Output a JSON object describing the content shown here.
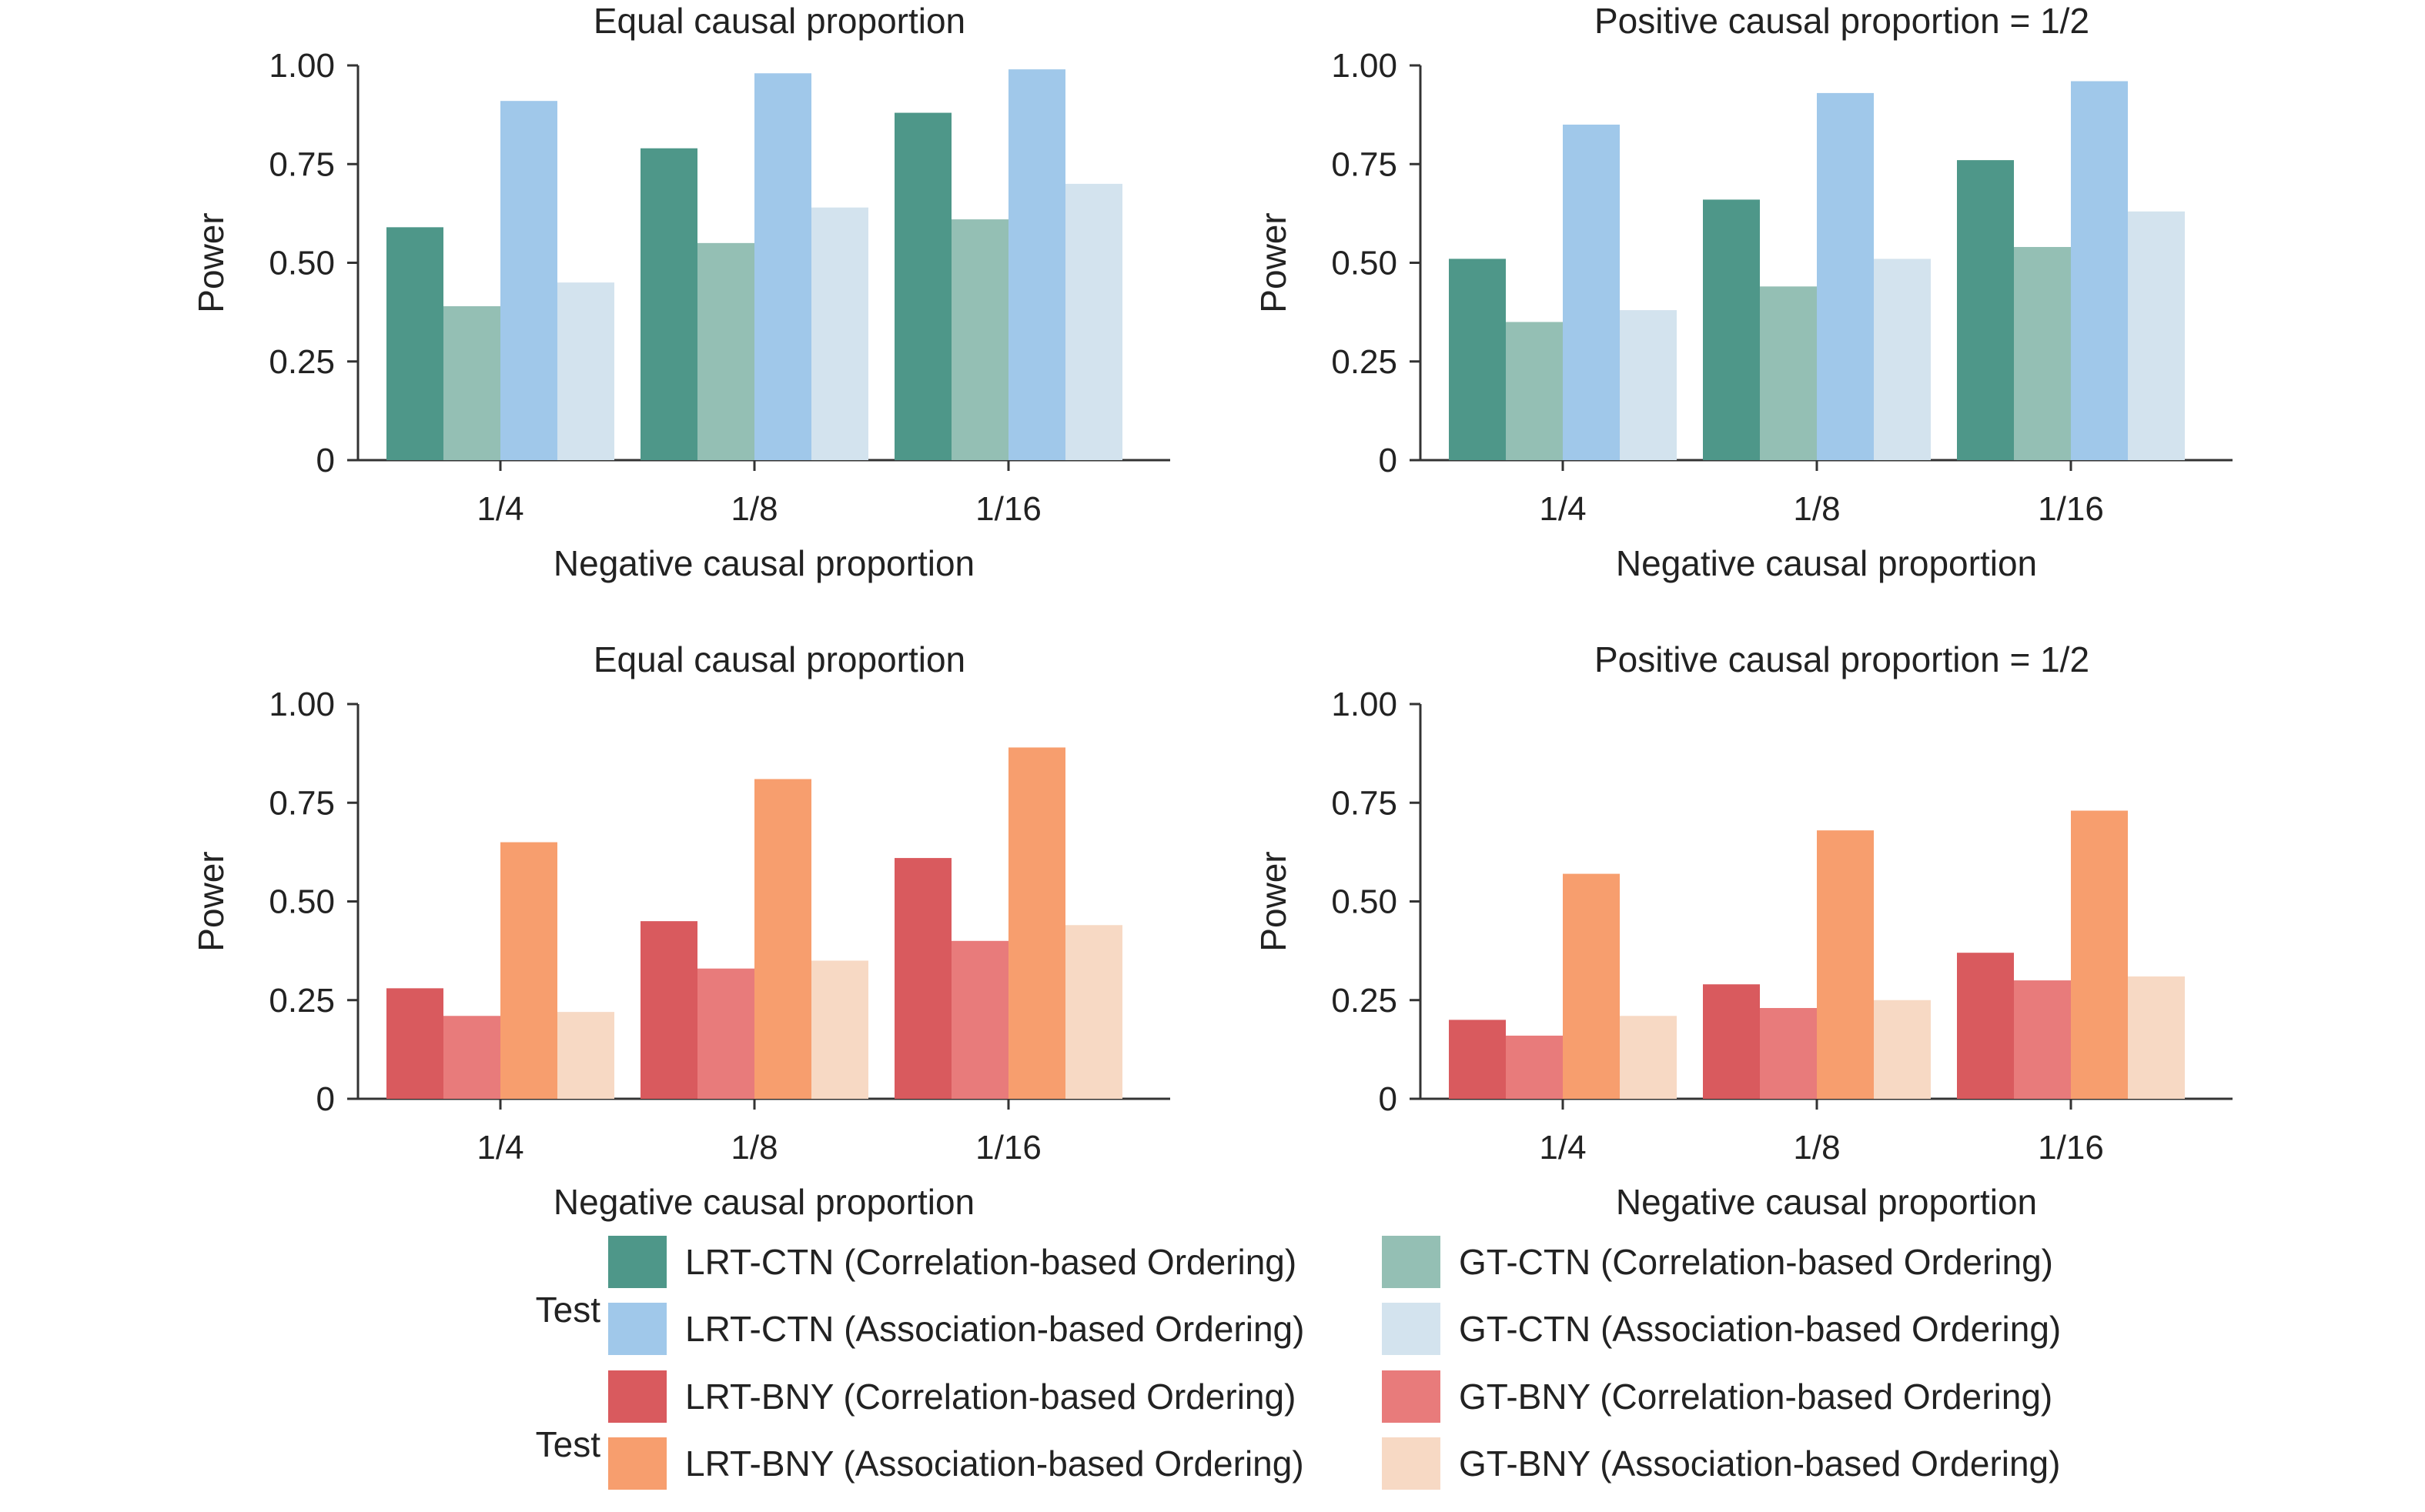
{
  "chart_data": [
    {
      "type": "bar",
      "title": "Equal causal proportion",
      "xlabel": "Negative causal proportion",
      "ylabel": "Power",
      "ylim": [
        0,
        1
      ],
      "yticks": [
        0,
        0.25,
        0.5,
        0.75,
        1.0
      ],
      "ytick_labels": [
        "0",
        "0.25",
        "0.50",
        "0.75",
        "1.00"
      ],
      "categories": [
        "1/4",
        "1/8",
        "1/16"
      ],
      "series": [
        {
          "name": "LRT-CTN (Correlation-based Ordering)",
          "color": "#4e9789",
          "values": [
            0.59,
            0.79,
            0.88
          ]
        },
        {
          "name": "GT-CTN (Correlation-based Ordering)",
          "color": "#94bfb4",
          "values": [
            0.39,
            0.55,
            0.61
          ]
        },
        {
          "name": "LRT-CTN (Association-based Ordering)",
          "color": "#a0c8ea",
          "values": [
            0.91,
            0.98,
            0.99
          ]
        },
        {
          "name": "GT-CTN (Association-based Ordering)",
          "color": "#d3e3ee",
          "values": [
            0.45,
            0.64,
            0.7
          ]
        }
      ]
    },
    {
      "type": "bar",
      "title": "Positive causal proportion = 1/2",
      "xlabel": "Negative causal proportion",
      "ylabel": "Power",
      "ylim": [
        0,
        1
      ],
      "yticks": [
        0,
        0.25,
        0.5,
        0.75,
        1.0
      ],
      "ytick_labels": [
        "0",
        "0.25",
        "0.50",
        "0.75",
        "1.00"
      ],
      "categories": [
        "1/4",
        "1/8",
        "1/16"
      ],
      "series": [
        {
          "name": "LRT-CTN (Correlation-based Ordering)",
          "color": "#4e9789",
          "values": [
            0.51,
            0.66,
            0.76
          ]
        },
        {
          "name": "GT-CTN (Correlation-based Ordering)",
          "color": "#94bfb4",
          "values": [
            0.35,
            0.44,
            0.54
          ]
        },
        {
          "name": "LRT-CTN (Association-based Ordering)",
          "color": "#a0c8ea",
          "values": [
            0.85,
            0.93,
            0.96
          ]
        },
        {
          "name": "GT-CTN (Association-based Ordering)",
          "color": "#d3e3ee",
          "values": [
            0.38,
            0.51,
            0.63
          ]
        }
      ]
    },
    {
      "type": "bar",
      "title": "Equal causal proportion",
      "xlabel": "Negative causal proportion",
      "ylabel": "Power",
      "ylim": [
        0,
        1
      ],
      "yticks": [
        0,
        0.25,
        0.5,
        0.75,
        1.0
      ],
      "ytick_labels": [
        "0",
        "0.25",
        "0.50",
        "0.75",
        "1.00"
      ],
      "categories": [
        "1/4",
        "1/8",
        "1/16"
      ],
      "series": [
        {
          "name": "LRT-BNY (Correlation-based Ordering)",
          "color": "#d95a5e",
          "values": [
            0.28,
            0.45,
            0.61
          ]
        },
        {
          "name": "GT-BNY (Correlation-based Ordering)",
          "color": "#e87b7b",
          "values": [
            0.21,
            0.33,
            0.4
          ]
        },
        {
          "name": "LRT-BNY (Association-based Ordering)",
          "color": "#f79e6e",
          "values": [
            0.65,
            0.81,
            0.89
          ]
        },
        {
          "name": "GT-BNY (Association-based Ordering)",
          "color": "#f7d9c4",
          "values": [
            0.22,
            0.35,
            0.44
          ]
        }
      ]
    },
    {
      "type": "bar",
      "title": "Positive causal proportion = 1/2",
      "xlabel": "Negative causal proportion",
      "ylabel": "Power",
      "ylim": [
        0,
        1
      ],
      "yticks": [
        0,
        0.25,
        0.5,
        0.75,
        1.0
      ],
      "ytick_labels": [
        "0",
        "0.25",
        "0.50",
        "0.75",
        "1.00"
      ],
      "categories": [
        "1/4",
        "1/8",
        "1/16"
      ],
      "series": [
        {
          "name": "LRT-BNY (Correlation-based Ordering)",
          "color": "#d95a5e",
          "values": [
            0.2,
            0.29,
            0.37
          ]
        },
        {
          "name": "GT-BNY (Correlation-based Ordering)",
          "color": "#e87b7b",
          "values": [
            0.16,
            0.23,
            0.3
          ]
        },
        {
          "name": "LRT-BNY (Association-based Ordering)",
          "color": "#f79e6e",
          "values": [
            0.57,
            0.68,
            0.73
          ]
        },
        {
          "name": "GT-BNY (Association-based Ordering)",
          "color": "#f7d9c4",
          "values": [
            0.21,
            0.25,
            0.31
          ]
        }
      ]
    }
  ],
  "legend": {
    "groups": [
      {
        "title": "Test",
        "items": [
          {
            "label": "LRT-CTN (Correlation-based Ordering)",
            "color": "#4e9789"
          },
          {
            "label": "GT-CTN (Correlation-based Ordering)",
            "color": "#94bfb4"
          },
          {
            "label": "LRT-CTN (Association-based Ordering)",
            "color": "#a0c8ea"
          },
          {
            "label": "GT-CTN (Association-based Ordering)",
            "color": "#d3e3ee"
          }
        ]
      },
      {
        "title": "Test",
        "items": [
          {
            "label": "LRT-BNY (Correlation-based Ordering)",
            "color": "#d95a5e"
          },
          {
            "label": "GT-BNY (Correlation-based Ordering)",
            "color": "#e87b7b"
          },
          {
            "label": "LRT-BNY (Association-based Ordering)",
            "color": "#f79e6e"
          },
          {
            "label": "GT-BNY (Association-based Ordering)",
            "color": "#f7d9c4"
          }
        ]
      }
    ]
  }
}
